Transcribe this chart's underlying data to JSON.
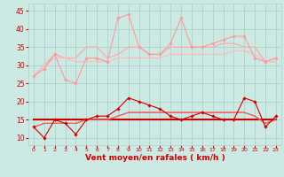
{
  "xlabel": "Vent moyen/en rafales ( km/h )",
  "ylabel": "",
  "background_color": "#cce9e4",
  "grid_color": "#aad4cc",
  "x_values": [
    0,
    1,
    2,
    3,
    4,
    5,
    6,
    7,
    8,
    9,
    10,
    11,
    12,
    13,
    14,
    15,
    16,
    17,
    18,
    19,
    20,
    21,
    22,
    23
  ],
  "series": [
    {
      "y": [
        27,
        29,
        33,
        26,
        25,
        32,
        32,
        31,
        43,
        44,
        35,
        33,
        33,
        36,
        43,
        35,
        35,
        36,
        37,
        38,
        38,
        32,
        31,
        32
      ],
      "color": "#ff9999",
      "lw": 0.8,
      "marker": "D",
      "ms": 1.8,
      "zorder": 3
    },
    {
      "y": [
        27,
        30,
        33,
        32,
        32,
        35,
        35,
        32,
        33,
        35,
        35,
        33,
        33,
        35,
        35,
        35,
        35,
        35,
        36,
        36,
        35,
        35,
        31,
        32
      ],
      "color": "#ffaaaa",
      "lw": 0.9,
      "marker": null,
      "ms": 0,
      "zorder": 2
    },
    {
      "y": [
        27,
        30,
        32,
        32,
        31,
        31,
        31,
        31,
        32,
        32,
        32,
        32,
        32,
        33,
        33,
        33,
        33,
        33,
        33,
        34,
        34,
        33,
        31,
        31
      ],
      "color": "#ffbbbb",
      "lw": 0.9,
      "marker": null,
      "ms": 0,
      "zorder": 2
    },
    {
      "y": [
        13,
        10,
        15,
        14,
        11,
        15,
        16,
        16,
        18,
        21,
        20,
        19,
        18,
        16,
        15,
        16,
        17,
        16,
        15,
        15,
        21,
        20,
        13,
        16
      ],
      "color": "#cc0000",
      "lw": 0.8,
      "marker": "D",
      "ms": 1.8,
      "zorder": 3
    },
    {
      "y": [
        15,
        15,
        15,
        15,
        15,
        15,
        15,
        15,
        15,
        15,
        15,
        15,
        15,
        15,
        15,
        15,
        15,
        15,
        15,
        15,
        15,
        15,
        15,
        15
      ],
      "color": "#cc0000",
      "lw": 1.5,
      "marker": null,
      "ms": 0,
      "zorder": 2
    },
    {
      "y": [
        13,
        14,
        14,
        14,
        14,
        15,
        15,
        15,
        16,
        17,
        17,
        17,
        17,
        17,
        17,
        17,
        17,
        17,
        17,
        17,
        17,
        16,
        14,
        15
      ],
      "color": "#ff4444",
      "lw": 0.8,
      "marker": null,
      "ms": 0,
      "zorder": 2
    },
    {
      "y": [
        13,
        14,
        14,
        14,
        14,
        15,
        15,
        15,
        16,
        17,
        17,
        17,
        17,
        17,
        17,
        17,
        17,
        17,
        17,
        17,
        17,
        16,
        14,
        15
      ],
      "color": "#ee6666",
      "lw": 0.8,
      "marker": null,
      "ms": 0,
      "zorder": 2
    }
  ],
  "ylim": [
    8,
    47
  ],
  "yticks": [
    10,
    15,
    20,
    25,
    30,
    35,
    40,
    45
  ],
  "xlim": [
    -0.5,
    23.5
  ],
  "xticks": [
    0,
    1,
    2,
    3,
    4,
    5,
    6,
    7,
    8,
    9,
    10,
    11,
    12,
    13,
    14,
    15,
    16,
    17,
    18,
    19,
    20,
    21,
    22,
    23
  ],
  "label_color": "#cc0000",
  "tick_color": "#cc0000",
  "xlabel_fontsize": 6.5,
  "xlabel_fontweight": "bold",
  "ytick_fontsize": 5.5,
  "xtick_fontsize": 4.5
}
